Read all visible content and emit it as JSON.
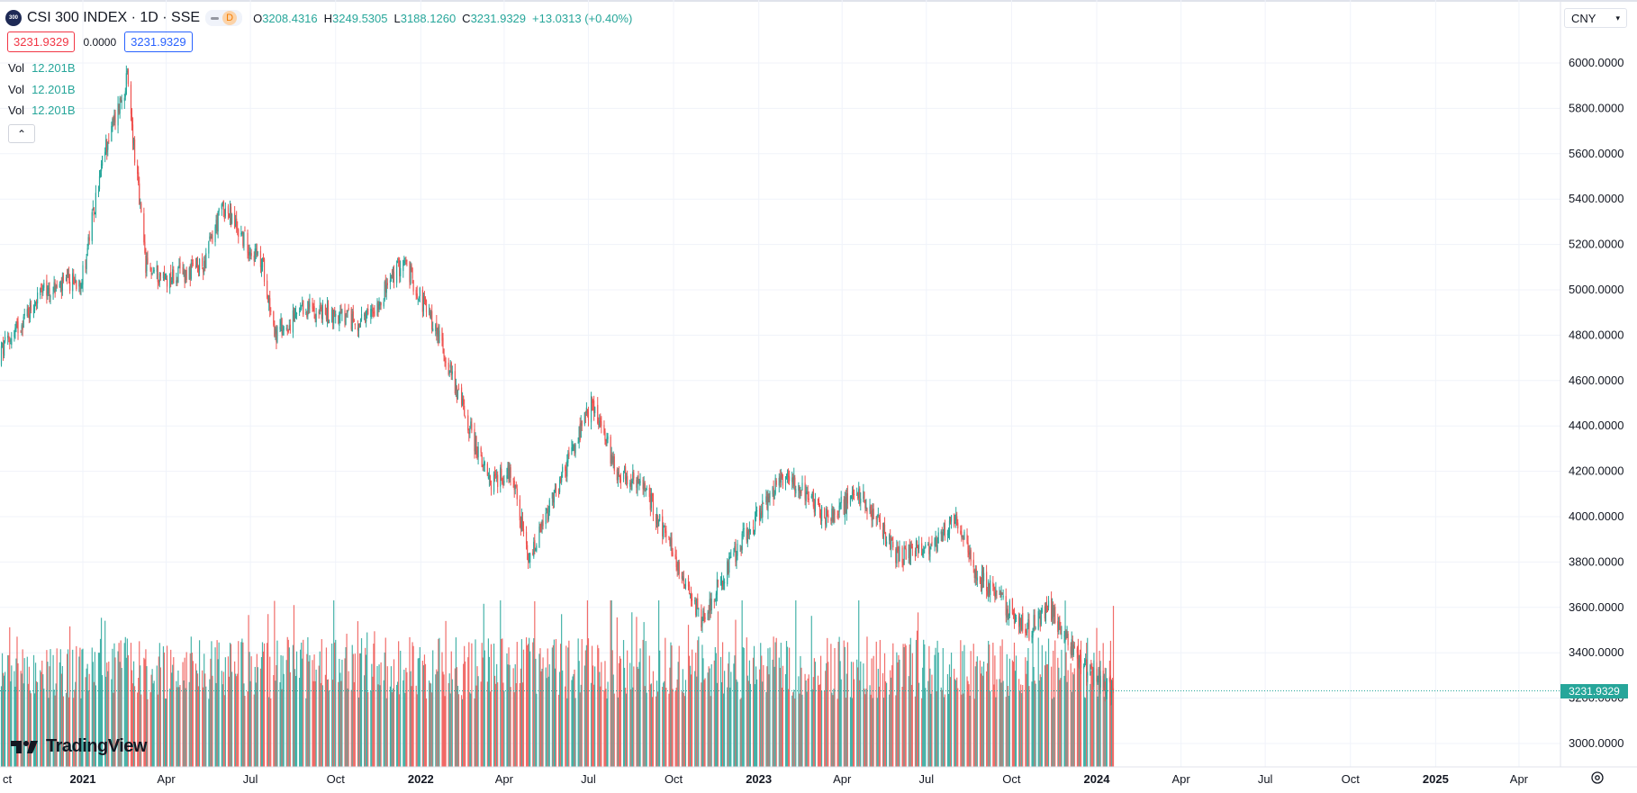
{
  "header": {
    "logo_text": "300",
    "title": "CSI 300 INDEX · 1D · SSE",
    "interval_badge": "D",
    "ohlc": [
      {
        "key": "O",
        "value": "3208.4316"
      },
      {
        "key": "H",
        "value": "3249.5305"
      },
      {
        "key": "L",
        "value": "3188.1260"
      },
      {
        "key": "C",
        "value": "3231.9329"
      }
    ],
    "change": "+13.0313 (+0.40%)"
  },
  "price_boxes": {
    "sell": "3231.9329",
    "spread": "0.0000",
    "buy": "3231.9329"
  },
  "volume_legend": [
    {
      "label": "Vol",
      "value": "12.201B"
    },
    {
      "label": "Vol",
      "value": "12.201B"
    },
    {
      "label": "Vol",
      "value": "12.201B"
    }
  ],
  "collapse_glyph": "⌃",
  "currency_select": {
    "value": "CNY"
  },
  "last_price_label": "3231.9329",
  "branding": "TradingView",
  "colors": {
    "up": "#26a69a",
    "down": "#ef5350",
    "grid": "#f0f3fa",
    "text": "#131722"
  },
  "chart_data": {
    "type": "candlestick",
    "title": "",
    "xlabel": "",
    "ylabel": "",
    "price_axis_ticks": [
      "6000.0000",
      "5800.0000",
      "5600.0000",
      "5400.0000",
      "5200.0000",
      "5000.0000",
      "4800.0000",
      "4600.0000",
      "4400.0000",
      "4200.0000",
      "4000.0000",
      "3800.0000",
      "3600.0000",
      "3400.0000",
      "3200.0000",
      "3000.0000"
    ],
    "ylim": [
      2920,
      6030
    ],
    "time_axis_labels": [
      {
        "label": "ct",
        "date": "2020-10-01",
        "bold": false
      },
      {
        "label": "2021",
        "date": "2021-01-01",
        "bold": true
      },
      {
        "label": "Apr",
        "date": "2021-04-01",
        "bold": false
      },
      {
        "label": "Jul",
        "date": "2021-07-01",
        "bold": false
      },
      {
        "label": "Oct",
        "date": "2021-10-01",
        "bold": false
      },
      {
        "label": "2022",
        "date": "2022-01-01",
        "bold": true
      },
      {
        "label": "Apr",
        "date": "2022-04-01",
        "bold": false
      },
      {
        "label": "Jul",
        "date": "2022-07-01",
        "bold": false
      },
      {
        "label": "Oct",
        "date": "2022-10-01",
        "bold": false
      },
      {
        "label": "2023",
        "date": "2023-01-01",
        "bold": true
      },
      {
        "label": "Apr",
        "date": "2023-04-01",
        "bold": false
      },
      {
        "label": "Jul",
        "date": "2023-07-01",
        "bold": false
      },
      {
        "label": "Oct",
        "date": "2023-10-01",
        "bold": false
      },
      {
        "label": "2024",
        "date": "2024-01-01",
        "bold": true
      },
      {
        "label": "Apr",
        "date": "2024-04-01",
        "bold": false
      },
      {
        "label": "Jul",
        "date": "2024-07-01",
        "bold": false
      },
      {
        "label": "Oct",
        "date": "2024-10-01",
        "bold": false
      },
      {
        "label": "2025",
        "date": "2025-01-01",
        "bold": true
      },
      {
        "label": "Apr",
        "date": "2025-04-01",
        "bold": false
      }
    ],
    "last_close": 3231.9329,
    "price_path": [
      {
        "date": "2020-10-01",
        "close": 4700
      },
      {
        "date": "2020-11-15",
        "close": 4980
      },
      {
        "date": "2020-12-31",
        "close": 5050
      },
      {
        "date": "2021-01-25",
        "close": 5620
      },
      {
        "date": "2021-02-18",
        "close": 5930
      },
      {
        "date": "2021-03-10",
        "close": 5100
      },
      {
        "date": "2021-04-01",
        "close": 5050
      },
      {
        "date": "2021-05-10",
        "close": 5100
      },
      {
        "date": "2021-06-01",
        "close": 5370
      },
      {
        "date": "2021-06-25",
        "close": 5220
      },
      {
        "date": "2021-07-15",
        "close": 5100
      },
      {
        "date": "2021-07-28",
        "close": 4800
      },
      {
        "date": "2021-09-01",
        "close": 4920
      },
      {
        "date": "2021-11-01",
        "close": 4850
      },
      {
        "date": "2021-12-13",
        "close": 5130
      },
      {
        "date": "2022-01-20",
        "close": 4800
      },
      {
        "date": "2022-03-15",
        "close": 4150
      },
      {
        "date": "2022-04-10",
        "close": 4200
      },
      {
        "date": "2022-04-27",
        "close": 3790
      },
      {
        "date": "2022-06-05",
        "close": 4200
      },
      {
        "date": "2022-07-05",
        "close": 4500
      },
      {
        "date": "2022-08-01",
        "close": 4200
      },
      {
        "date": "2022-09-01",
        "close": 4120
      },
      {
        "date": "2022-10-31",
        "close": 3550
      },
      {
        "date": "2022-12-15",
        "close": 3900
      },
      {
        "date": "2023-01-30",
        "close": 4200
      },
      {
        "date": "2023-03-15",
        "close": 4000
      },
      {
        "date": "2023-04-20",
        "close": 4100
      },
      {
        "date": "2023-06-01",
        "close": 3820
      },
      {
        "date": "2023-07-15",
        "close": 3900
      },
      {
        "date": "2023-08-01",
        "close": 4000
      },
      {
        "date": "2023-08-25",
        "close": 3740
      },
      {
        "date": "2023-10-20",
        "close": 3500
      },
      {
        "date": "2023-11-10",
        "close": 3600
      },
      {
        "date": "2023-12-20",
        "close": 3330
      },
      {
        "date": "2024-01-19",
        "close": 3232
      }
    ]
  }
}
